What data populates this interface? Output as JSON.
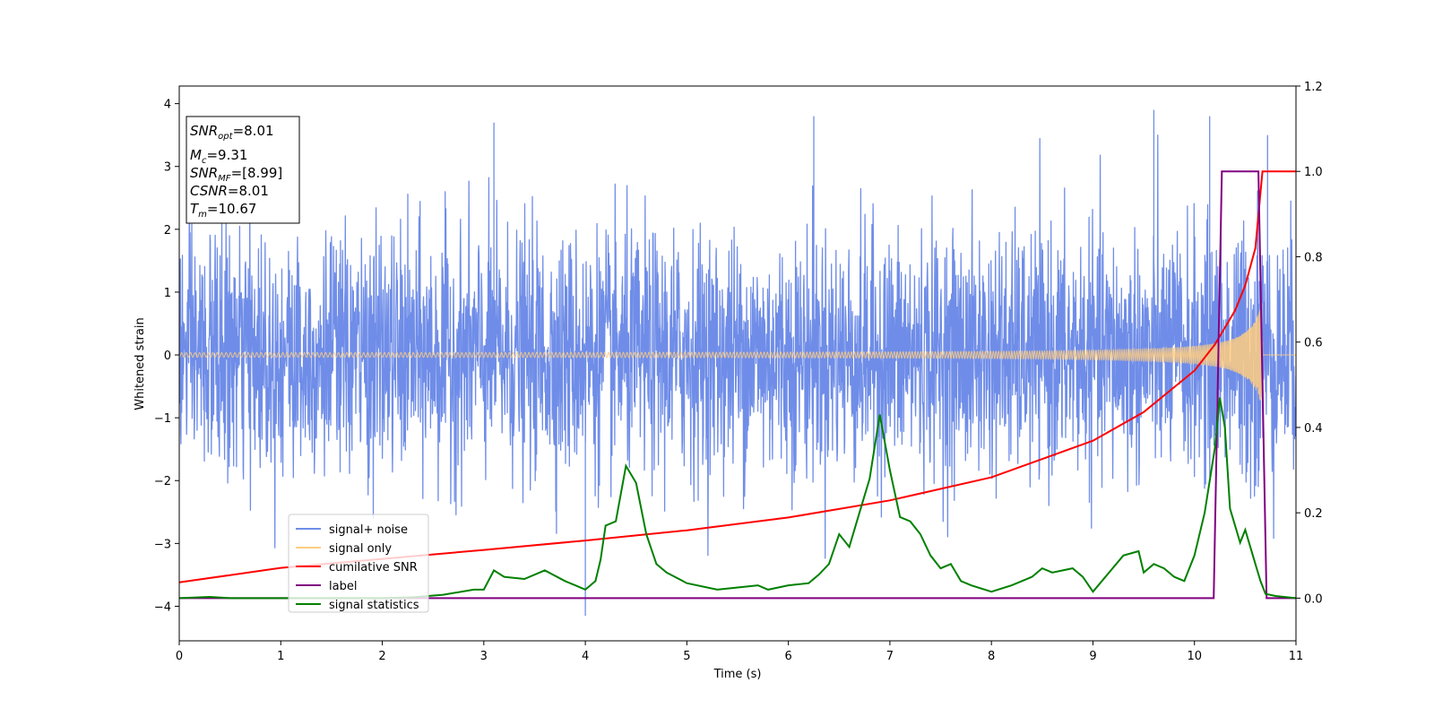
{
  "chart_data": {
    "type": "line",
    "xlabel": "Time (s)",
    "ylabel_left": "Whitened strain",
    "xlim": [
      0,
      11
    ],
    "ylim_left": [
      -4.55,
      4.28
    ],
    "ylim_right": [
      -0.1,
      1.2
    ],
    "x_ticks": [
      0,
      1,
      2,
      3,
      4,
      5,
      6,
      7,
      8,
      9,
      10,
      11
    ],
    "x_tick_labels": [
      "0",
      "1",
      "2",
      "3",
      "4",
      "5",
      "6",
      "7",
      "8",
      "9",
      "10",
      "11"
    ],
    "y_left_ticks": [
      -4,
      -3,
      -2,
      -1,
      0,
      1,
      2,
      3,
      4
    ],
    "y_left_tick_labels": [
      "−4",
      "−3",
      "−2",
      "−1",
      "0",
      "1",
      "2",
      "3",
      "4"
    ],
    "y_right_ticks": [
      0.0,
      0.2,
      0.4,
      0.6,
      0.8,
      1.0,
      1.2
    ],
    "y_right_tick_labels": [
      "0.0",
      "0.2",
      "0.4",
      "0.6",
      "0.8",
      "1.0",
      "1.2"
    ],
    "grid": false,
    "legend_position": "lower-left",
    "legend": [
      {
        "label": "signal+ noise",
        "color": "#6f8de8"
      },
      {
        "label": "signal only",
        "color": "#ffcc80"
      },
      {
        "label": "cumilative SNR",
        "color": "#ff0000"
      },
      {
        "label": "label",
        "color": "#800080"
      },
      {
        "label": "signal statistics",
        "color": "#008000"
      }
    ],
    "annotation": {
      "snr_opt": {
        "var": "SNR",
        "sub": "opt",
        "value": "=8.01"
      },
      "mc": {
        "var": "M",
        "sub": "c",
        "value": "=9.31"
      },
      "snr_mf": {
        "var": "SNR",
        "sub": "MF",
        "value": "=[8.99]"
      },
      "csnr": {
        "var": "CSNR",
        "sub": "",
        "value": "=8.01"
      },
      "tm": {
        "var": "T",
        "sub": "m",
        "value": "=10.67"
      }
    },
    "series": [
      {
        "name": "signal+ noise",
        "axis": "left",
        "color": "#6f8de8",
        "description_range": [
          -4.2,
          3.9
        ],
        "peaks": [
          {
            "x": 3.1,
            "y": 3.7
          },
          {
            "x": 4.0,
            "y": -4.15
          },
          {
            "x": 6.25,
            "y": 3.8
          },
          {
            "x": 9.6,
            "y": 3.9
          },
          {
            "x": 10.15,
            "y": 3.8
          },
          {
            "x": 10.72,
            "y": 3.5
          }
        ]
      },
      {
        "name": "signal only",
        "axis": "left",
        "color": "#ffcc80",
        "t_merger": 10.67,
        "amplitude_start": 0.03,
        "amplitude_end": 0.9
      },
      {
        "name": "cumilative SNR",
        "axis": "right",
        "color": "#ff0000",
        "x": [
          0,
          1,
          2,
          3,
          4,
          5,
          6,
          7,
          8,
          9,
          9.5,
          10,
          10.2,
          10.4,
          10.5,
          10.6,
          10.67,
          11
        ],
        "y": [
          0.037,
          0.071,
          0.092,
          0.113,
          0.135,
          0.159,
          0.189,
          0.229,
          0.283,
          0.369,
          0.436,
          0.533,
          0.594,
          0.674,
          0.733,
          0.82,
          1.0,
          1.0
        ]
      },
      {
        "name": "label",
        "axis": "right",
        "color": "#800080",
        "x": [
          0,
          10.19,
          10.27,
          10.63,
          10.71,
          11
        ],
        "y": [
          0,
          0,
          1,
          1,
          0,
          0
        ]
      },
      {
        "name": "signal statistics",
        "axis": "right",
        "color": "#008000",
        "x": [
          0,
          0.3,
          0.5,
          0.8,
          1.0,
          1.5,
          2.0,
          2.3,
          2.6,
          2.9,
          3.0,
          3.1,
          3.2,
          3.4,
          3.6,
          3.8,
          3.9,
          4.0,
          4.1,
          4.15,
          4.2,
          4.3,
          4.4,
          4.5,
          4.6,
          4.7,
          4.8,
          5.0,
          5.3,
          5.5,
          5.7,
          5.8,
          6.0,
          6.2,
          6.3,
          6.4,
          6.5,
          6.6,
          6.7,
          6.8,
          6.9,
          7.0,
          7.1,
          7.2,
          7.3,
          7.4,
          7.5,
          7.6,
          7.7,
          7.8,
          8.0,
          8.2,
          8.4,
          8.5,
          8.6,
          8.8,
          8.9,
          9.0,
          9.3,
          9.45,
          9.5,
          9.6,
          9.7,
          9.8,
          9.9,
          10.0,
          10.1,
          10.2,
          10.25,
          10.3,
          10.35,
          10.45,
          10.5,
          10.6,
          10.65,
          10.7,
          10.8,
          11.0
        ],
        "y": [
          0.0,
          0.003,
          0.0,
          0.0,
          0.0,
          0.0,
          0.0,
          0.002,
          0.008,
          0.02,
          0.02,
          0.065,
          0.05,
          0.045,
          0.065,
          0.04,
          0.03,
          0.02,
          0.04,
          0.09,
          0.17,
          0.18,
          0.31,
          0.27,
          0.15,
          0.08,
          0.06,
          0.035,
          0.02,
          0.025,
          0.03,
          0.02,
          0.03,
          0.035,
          0.055,
          0.08,
          0.15,
          0.12,
          0.2,
          0.28,
          0.43,
          0.3,
          0.19,
          0.18,
          0.15,
          0.1,
          0.07,
          0.08,
          0.04,
          0.03,
          0.015,
          0.03,
          0.05,
          0.07,
          0.06,
          0.07,
          0.05,
          0.015,
          0.1,
          0.11,
          0.06,
          0.08,
          0.07,
          0.05,
          0.04,
          0.1,
          0.2,
          0.35,
          0.47,
          0.4,
          0.21,
          0.13,
          0.16,
          0.08,
          0.04,
          0.01,
          0.005,
          0.0
        ]
      }
    ]
  }
}
